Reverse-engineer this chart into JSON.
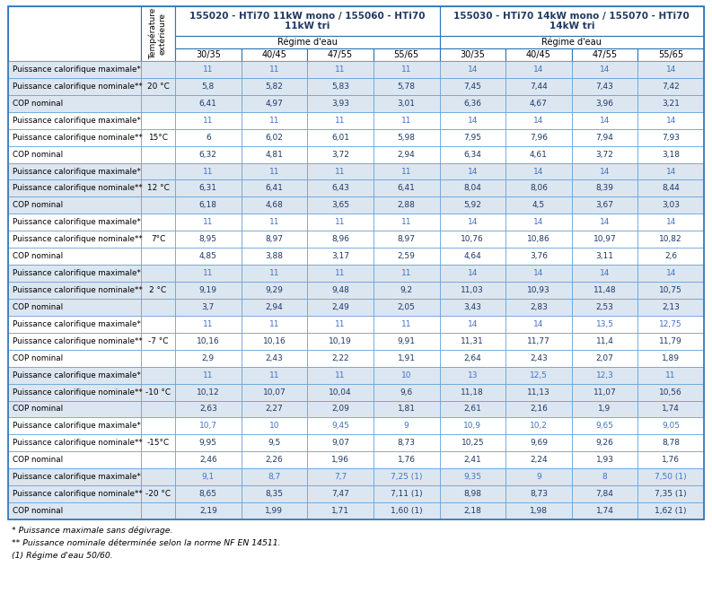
{
  "header1_text": "155020 - HTi70 11kW mono / 155060 - HTi70\n11kW tri",
  "header2_text": "155030 - HTi70 14kW mono / 155070 - HTi70\n14kW tri",
  "regime_label": "Régime d'eau",
  "temp_label": "Température\nextérieure",
  "sub_cols": [
    "30/35",
    "40/45",
    "47/55",
    "55/65",
    "30/35",
    "40/45",
    "47/55",
    "55/65"
  ],
  "row_labels": [
    "Puissance calorifique maximale*",
    "Puissance calorifique nominale**",
    "COP nominal",
    "Puissance calorifique maximale*",
    "Puissance calorifique nominale**",
    "COP nominal",
    "Puissance calorifique maximale*",
    "Puissance calorifique nominale**",
    "COP nominal",
    "Puissance calorifique maximale*",
    "Puissance calorifique nominale**",
    "COP nominal",
    "Puissance calorifique maximale*",
    "Puissance calorifique nominale**",
    "COP nominal",
    "Puissance calorifique maximale*",
    "Puissance calorifique nominale**",
    "COP nominal",
    "Puissance calorifique maximale*",
    "Puissance calorifique nominale**",
    "COP nominal",
    "Puissance calorifique maximale*",
    "Puissance calorifique nominale**",
    "COP nominal",
    "Puissance calorifique maximale*",
    "Puissance calorifique nominale**",
    "COP nominal"
  ],
  "temp_labels": [
    "20 °C",
    "15°C",
    "12 °C",
    "7°C",
    "2 °C",
    "-7 °C",
    "-10 °C",
    "-15°C",
    "-20 °C"
  ],
  "data": [
    [
      "11",
      "11",
      "11",
      "11",
      "14",
      "14",
      "14",
      "14"
    ],
    [
      "5,8",
      "5,82",
      "5,83",
      "5,78",
      "7,45",
      "7,44",
      "7,43",
      "7,42"
    ],
    [
      "6,41",
      "4,97",
      "3,93",
      "3,01",
      "6,36",
      "4,67",
      "3,96",
      "3,21"
    ],
    [
      "11",
      "11",
      "11",
      "11",
      "14",
      "14",
      "14",
      "14"
    ],
    [
      "6",
      "6,02",
      "6,01",
      "5,98",
      "7,95",
      "7,96",
      "7,94",
      "7,93"
    ],
    [
      "6,32",
      "4,81",
      "3,72",
      "2,94",
      "6,34",
      "4,61",
      "3,72",
      "3,18"
    ],
    [
      "11",
      "11",
      "11",
      "11",
      "14",
      "14",
      "14",
      "14"
    ],
    [
      "6,31",
      "6,41",
      "6,43",
      "6,41",
      "8,04",
      "8,06",
      "8,39",
      "8,44"
    ],
    [
      "6,18",
      "4,68",
      "3,65",
      "2,88",
      "5,92",
      "4,5",
      "3,67",
      "3,03"
    ],
    [
      "11",
      "11",
      "11",
      "11",
      "14",
      "14",
      "14",
      "14"
    ],
    [
      "8,95",
      "8,97",
      "8,96",
      "8,97",
      "10,76",
      "10,86",
      "10,97",
      "10,82"
    ],
    [
      "4,85",
      "3,88",
      "3,17",
      "2,59",
      "4,64",
      "3,76",
      "3,11",
      "2,6"
    ],
    [
      "11",
      "11",
      "11",
      "11",
      "14",
      "14",
      "14",
      "14"
    ],
    [
      "9,19",
      "9,29",
      "9,48",
      "9,2",
      "11,03",
      "10,93",
      "11,48",
      "10,75"
    ],
    [
      "3,7",
      "2,94",
      "2,49",
      "2,05",
      "3,43",
      "2,83",
      "2,53",
      "2,13"
    ],
    [
      "11",
      "11",
      "11",
      "11",
      "14",
      "14",
      "13,5",
      "12,75"
    ],
    [
      "10,16",
      "10,16",
      "10,19",
      "9,91",
      "11,31",
      "11,77",
      "11,4",
      "11,79"
    ],
    [
      "2,9",
      "2,43",
      "2,22",
      "1,91",
      "2,64",
      "2,43",
      "2,07",
      "1,89"
    ],
    [
      "11",
      "11",
      "11",
      "10",
      "13",
      "12,5",
      "12,3",
      "11"
    ],
    [
      "10,12",
      "10,07",
      "10,04",
      "9,6",
      "11,18",
      "11,13",
      "11,07",
      "10,56"
    ],
    [
      "2,63",
      "2,27",
      "2,09",
      "1,81",
      "2,61",
      "2,16",
      "1,9",
      "1,74"
    ],
    [
      "10,7",
      "10",
      "9,45",
      "9",
      "10,9",
      "10,2",
      "9,65",
      "9,05"
    ],
    [
      "9,95",
      "9,5",
      "9,07",
      "8,73",
      "10,25",
      "9,69",
      "9,26",
      "8,78"
    ],
    [
      "2,46",
      "2,26",
      "1,96",
      "1,76",
      "2,41",
      "2,24",
      "1,93",
      "1,76"
    ],
    [
      "9,1",
      "8,7",
      "7,7",
      "7,25 (1)",
      "9,35",
      "9",
      "8",
      "7,50 (1)"
    ],
    [
      "8,65",
      "8,35",
      "7,47",
      "7,11 (1)",
      "8,98",
      "8,73",
      "7,84",
      "7,35 (1)"
    ],
    [
      "2,19",
      "1,99",
      "1,71",
      "1,60 (1)",
      "2,18",
      "1,98",
      "1,74",
      "1,62 (1)"
    ]
  ],
  "footnotes": [
    "* Puissance maximale sans dégivrage.",
    "** Puissance nominale déterminée selon la norme NF EN 14511.",
    "(1) Régime d'eau 50/60."
  ],
  "bg_light": "#dce6f1",
  "bg_white": "#ffffff",
  "border_color": "#5b9bd5",
  "header_border": "#2e75b6",
  "text_black": "#000000",
  "text_blue": "#4472c4",
  "text_dark_navy": "#1f3864"
}
